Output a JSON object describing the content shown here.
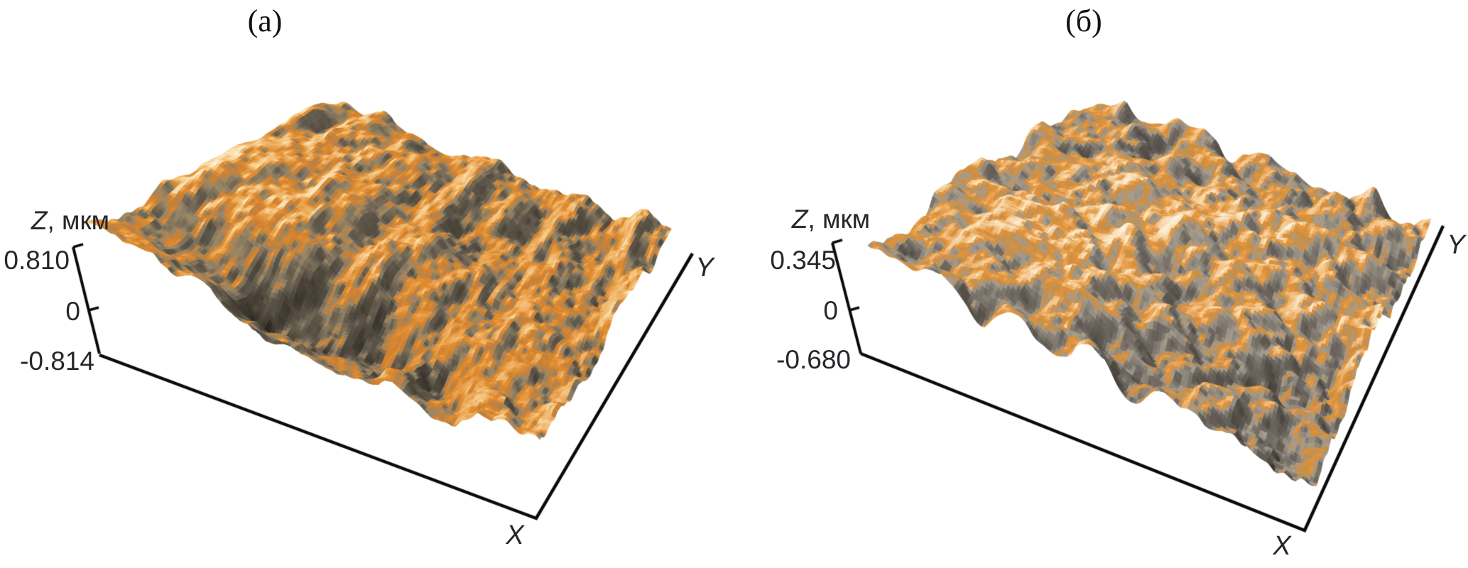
{
  "figure_background": "#ffffff",
  "panels": [
    {
      "label": "(а)",
      "z_var": "Z",
      "z_units": ", мкм",
      "z_tick_max": "0.810",
      "z_tick_zero": "0",
      "z_tick_min": "-0.814",
      "x_label": "X",
      "y_label": "Y"
    },
    {
      "label": "(б)",
      "z_var": "Z",
      "z_units": ", мкм",
      "z_tick_max": "0.345",
      "z_tick_zero": "0",
      "z_tick_min": "-0.680",
      "x_label": "X",
      "y_label": "Y"
    }
  ],
  "chart_data": [
    {
      "type": "surface",
      "title": "(а)",
      "zlabel": "Z, мкм",
      "xlabel": "X",
      "ylabel": "Y",
      "z_ticks": [
        0.81,
        0,
        -0.814
      ],
      "zlim": [
        -0.814,
        0.81
      ],
      "z_units": "мкм",
      "legend": "none",
      "grid": false,
      "surface_description": "AFM 3D topography: streaky rough relief, bright smooth dome at upper left, deep dark diagonal valley at lower left, orange colormap with gray hillshading",
      "colormap_hint": [
        "#3f3a30",
        "#8c8170",
        "#e08a2e",
        "#f7dca8",
        "#fdf6e3"
      ]
    },
    {
      "type": "surface",
      "title": "(б)",
      "zlabel": "Z, мкм",
      "xlabel": "X",
      "ylabel": "Y",
      "z_ticks": [
        0.345,
        0,
        -0.68
      ],
      "zlim": [
        -0.68,
        0.345
      ],
      "z_units": "мкм",
      "legend": "none",
      "grid": false,
      "surface_description": "AFM 3D topography: dense nodular grains, pale silvery mound left of center, orange colormap with gray hillshading",
      "colormap_hint": [
        "#4a453c",
        "#a39e96",
        "#e29038",
        "#f4dfbe",
        "#fdf8ef"
      ]
    }
  ]
}
